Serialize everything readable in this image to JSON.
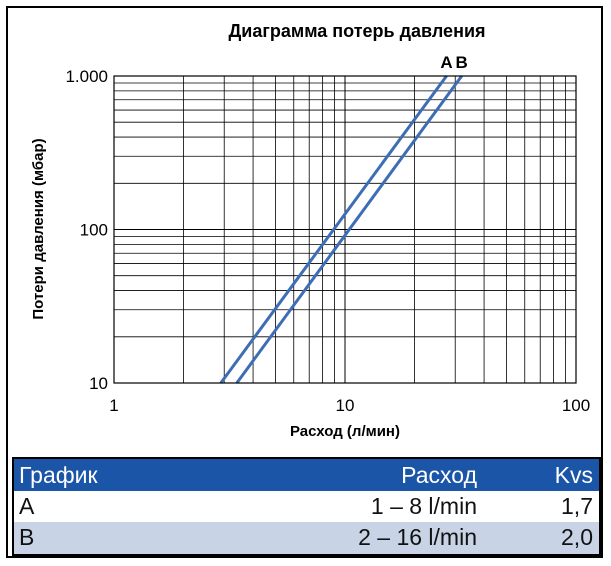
{
  "chart_data": {
    "type": "line",
    "title": "Диаграмма потерь давления",
    "xlabel": "Расход (л/мин)",
    "ylabel": "Потери давления (мбар)",
    "x_scale": "log",
    "y_scale": "log",
    "xlim": [
      1,
      100
    ],
    "ylim": [
      10,
      1000
    ],
    "x_ticks": [
      1,
      10,
      100
    ],
    "x_tick_labels": [
      "1",
      "10",
      "100"
    ],
    "y_ticks": [
      10,
      100,
      1000
    ],
    "y_tick_labels": [
      "10",
      "100",
      "1.000"
    ],
    "grid": true,
    "series": [
      {
        "name": "A",
        "x": [
          2.9,
          27.5
        ],
        "y": [
          10,
          1000
        ],
        "color": "#3d6db5"
      },
      {
        "name": "B",
        "x": [
          3.4,
          32.0
        ],
        "y": [
          10,
          1000
        ],
        "color": "#3d6db5"
      }
    ]
  },
  "table": {
    "headers": [
      "График",
      "Расход",
      "Kvs"
    ],
    "rows": [
      {
        "graph": "A",
        "flow": "1 – 8 l/min",
        "kvs": "1,7"
      },
      {
        "graph": "B",
        "flow": "2 – 16 l/min",
        "kvs": "2,0"
      }
    ]
  },
  "colors": {
    "line": "#3d6db5",
    "table_header": "#1b55a7",
    "table_row_alt": "#c8d4e6"
  }
}
